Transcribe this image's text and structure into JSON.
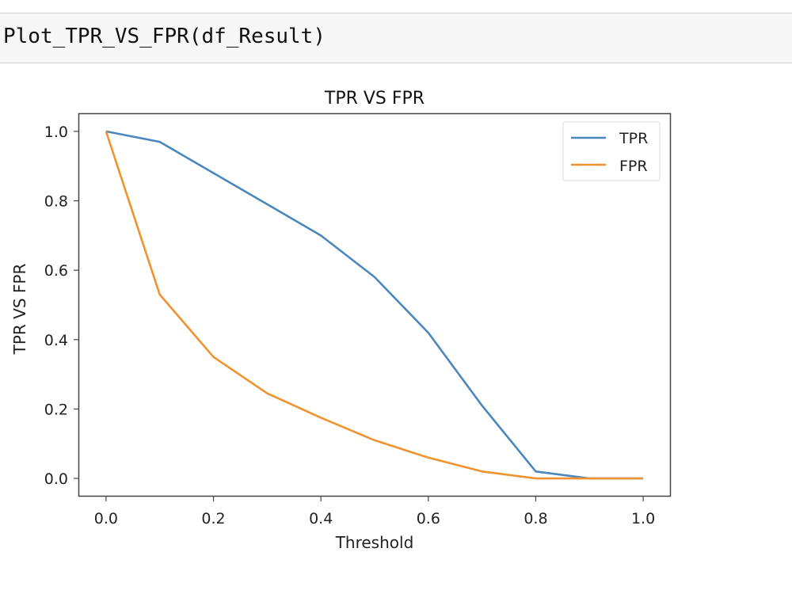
{
  "code_cell": {
    "source": "Plot_TPR_VS_FPR(df_Result)"
  },
  "chart_data": {
    "type": "line",
    "title": "TPR VS FPR",
    "xlabel": "Threshold",
    "ylabel": "TPR VS FPR",
    "xlim": [
      -0.05,
      1.05
    ],
    "ylim": [
      -0.05,
      1.05
    ],
    "x_ticks": [
      0.0,
      0.2,
      0.4,
      0.6,
      0.8,
      1.0
    ],
    "x_tick_labels": [
      "0.0",
      "0.2",
      "0.4",
      "0.6",
      "0.8",
      "1.0"
    ],
    "y_ticks": [
      0.0,
      0.2,
      0.4,
      0.6,
      0.8,
      1.0
    ],
    "y_tick_labels": [
      "0.0",
      "0.2",
      "0.4",
      "0.6",
      "0.8",
      "1.0"
    ],
    "x": [
      0.0,
      0.1,
      0.2,
      0.3,
      0.4,
      0.5,
      0.6,
      0.7,
      0.8,
      0.9,
      1.0
    ],
    "series": [
      {
        "name": "TPR",
        "color": "#4a87be",
        "values": [
          1.0,
          0.97,
          0.88,
          0.79,
          0.7,
          0.58,
          0.42,
          0.21,
          0.02,
          0.0,
          0.0
        ]
      },
      {
        "name": "FPR",
        "color": "#f0922e",
        "values": [
          1.0,
          0.53,
          0.35,
          0.245,
          0.175,
          0.11,
          0.06,
          0.02,
          0.0,
          0.0,
          0.0
        ]
      }
    ],
    "legend_position": "top-right",
    "grid": false
  }
}
